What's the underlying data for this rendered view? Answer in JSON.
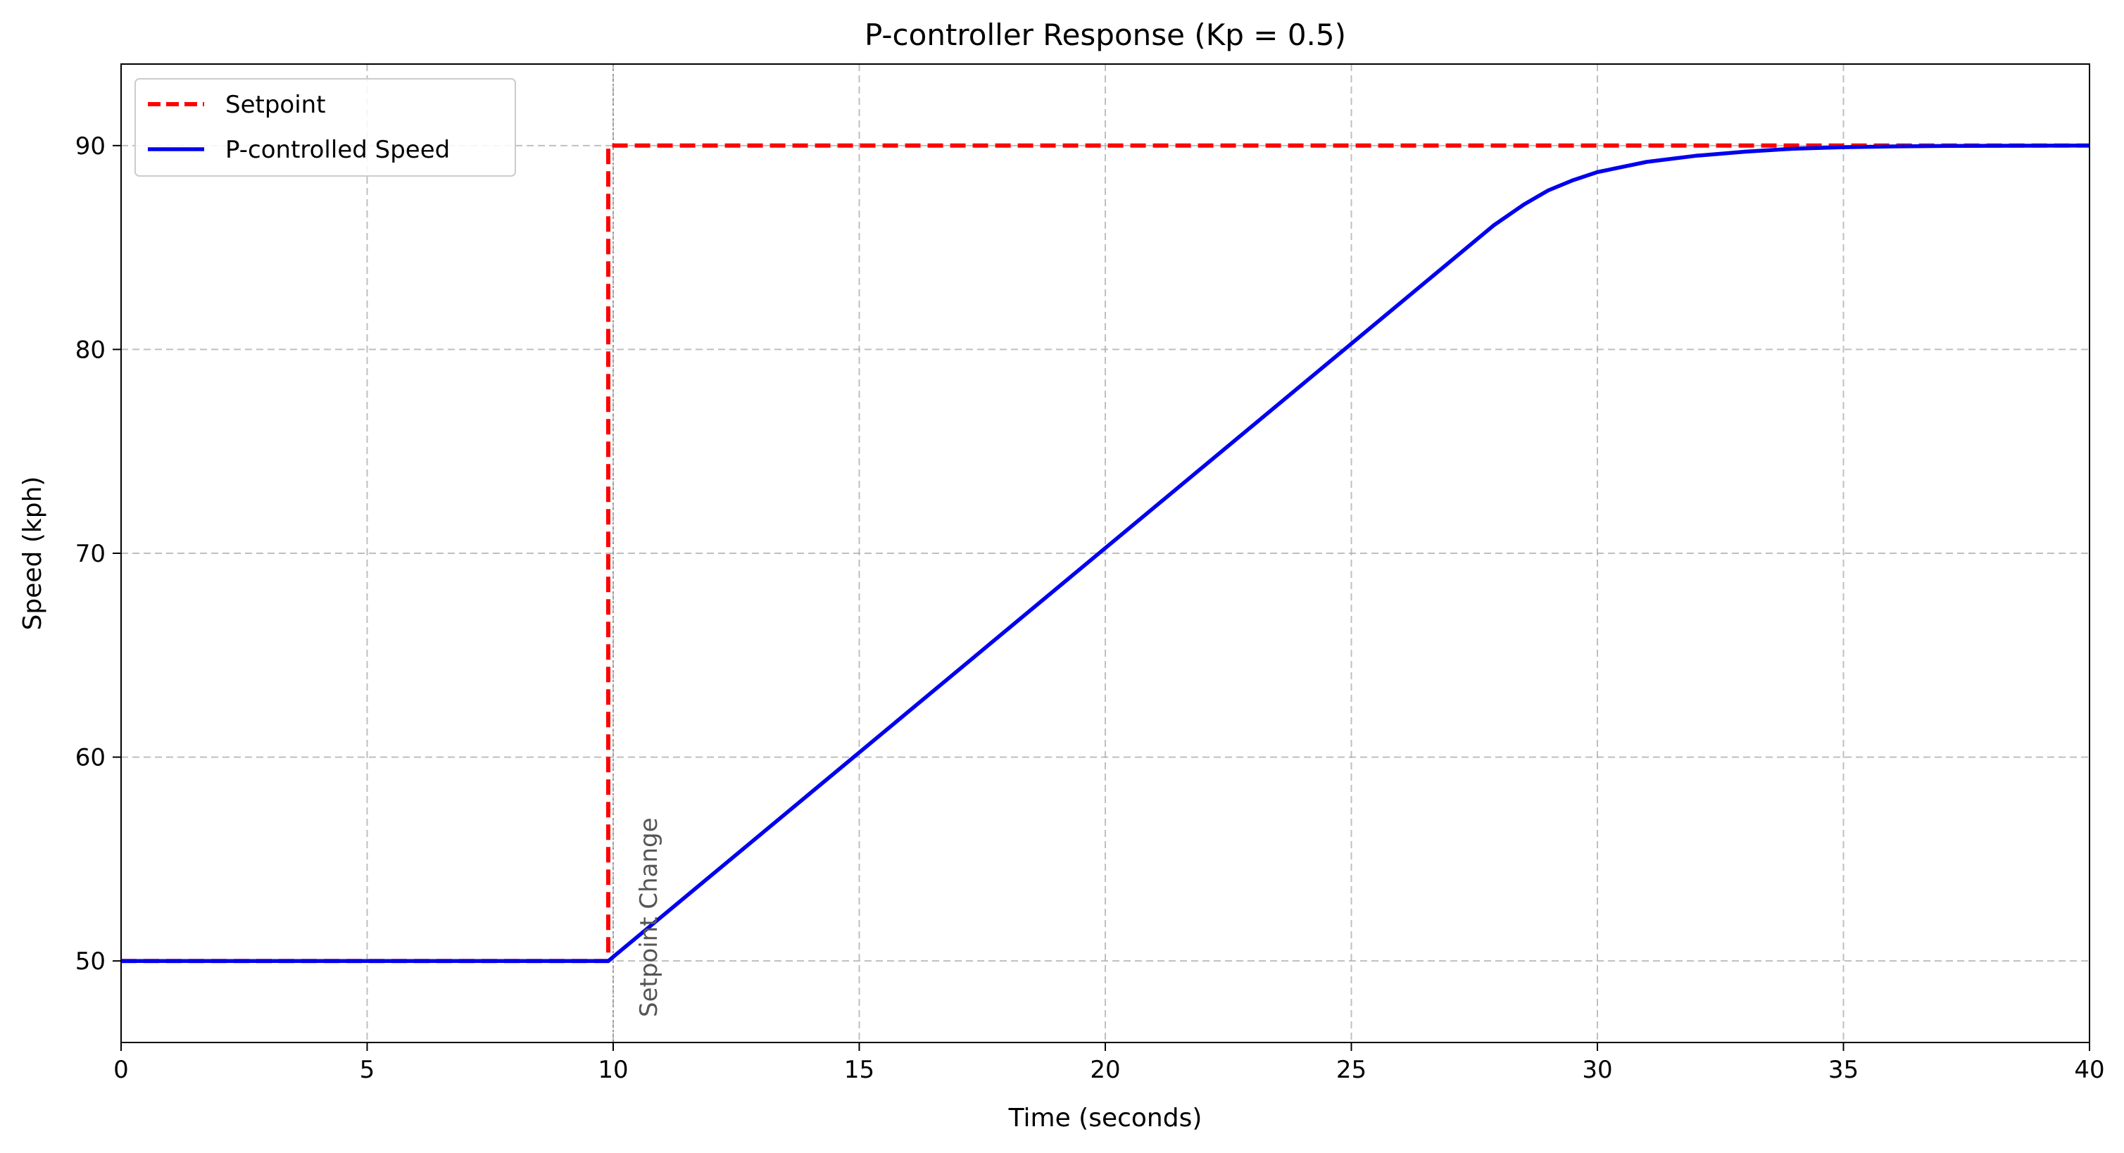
{
  "chart_data": {
    "type": "line",
    "title": "P-controller Response (Kp = 0.5)",
    "xlabel": "Time (seconds)",
    "ylabel": "Speed (kph)",
    "xlim": [
      0,
      40
    ],
    "ylim": [
      46,
      94
    ],
    "xticks": [
      0,
      5,
      10,
      15,
      20,
      25,
      30,
      35,
      40
    ],
    "yticks": [
      50,
      60,
      70,
      80,
      90
    ],
    "grid": true,
    "legend_position": "top-left",
    "series": [
      {
        "name": "Setpoint",
        "style": "dashed",
        "color": "#ff0000",
        "x": [
          0,
          9.9,
          9.9,
          40
        ],
        "y": [
          50,
          50,
          90,
          90
        ]
      },
      {
        "name": "P-controlled Speed",
        "style": "solid",
        "color": "#0000ee",
        "x": [
          0,
          9.9,
          27.9,
          28.5,
          29,
          29.5,
          30,
          31,
          32,
          33,
          34,
          35,
          36,
          37,
          38,
          40
        ],
        "y": [
          50,
          50,
          86.1,
          87.1,
          87.8,
          88.3,
          88.7,
          89.2,
          89.5,
          89.7,
          89.85,
          89.92,
          89.96,
          89.98,
          89.99,
          90
        ]
      }
    ],
    "annotations": [
      {
        "text": "Setpoint Change",
        "x": 10,
        "rotation": -90,
        "color": "#555555"
      }
    ],
    "vlines": [
      {
        "x": 10,
        "style": "dotted",
        "color": "#999999"
      }
    ]
  }
}
